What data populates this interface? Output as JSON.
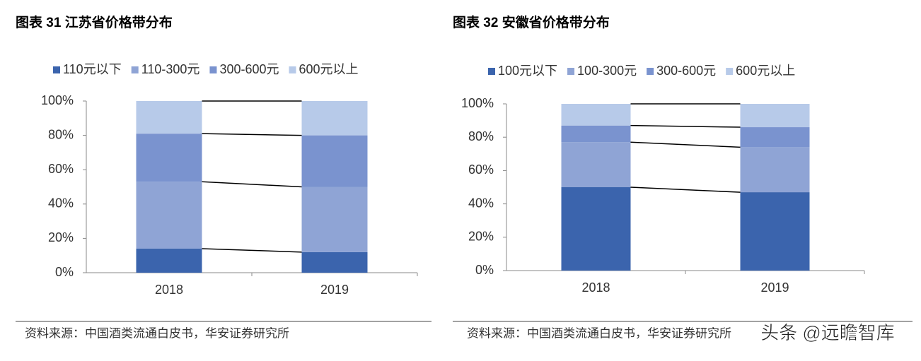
{
  "chart_data": [
    {
      "type": "stacked_bar",
      "title": "图表 31  江苏省价格带分布",
      "categories": [
        "2018",
        "2019"
      ],
      "series": [
        {
          "name": "110元以下",
          "color": "#3b64ad",
          "values": [
            14,
            12
          ]
        },
        {
          "name": "110-300元",
          "color": "#8fa4d5",
          "values": [
            39,
            38
          ]
        },
        {
          "name": "300-600元",
          "color": "#7a93cf",
          "values": [
            28,
            30
          ]
        },
        {
          "name": "600元以上",
          "color": "#b7cae9",
          "values": [
            19,
            20
          ]
        }
      ],
      "ylim": [
        0,
        100
      ],
      "yticks": [
        {
          "value": 0,
          "label": "0%"
        },
        {
          "value": 20,
          "label": "20%"
        },
        {
          "value": 40,
          "label": "40%"
        },
        {
          "value": 60,
          "label": "60%"
        },
        {
          "value": 80,
          "label": "80%"
        },
        {
          "value": 100,
          "label": "100%"
        }
      ],
      "source": "资料来源：中国酒类流通白皮书，华安证券研究所"
    },
    {
      "type": "stacked_bar",
      "title": "图表 32  安徽省价格带分布",
      "categories": [
        "2018",
        "2019"
      ],
      "series": [
        {
          "name": "100元以下",
          "color": "#3b64ad",
          "values": [
            50,
            47
          ]
        },
        {
          "name": "100-300元",
          "color": "#8fa4d5",
          "values": [
            27,
            27
          ]
        },
        {
          "name": "300-600元",
          "color": "#7a93cf",
          "values": [
            10,
            12
          ]
        },
        {
          "name": "600元以上",
          "color": "#b7cae9",
          "values": [
            13,
            14
          ]
        }
      ],
      "ylim": [
        0,
        100
      ],
      "yticks": [
        {
          "value": 0,
          "label": "0%"
        },
        {
          "value": 20,
          "label": "20%"
        },
        {
          "value": 40,
          "label": "40%"
        },
        {
          "value": 60,
          "label": "60%"
        },
        {
          "value": 80,
          "label": "80%"
        },
        {
          "value": 100,
          "label": "100%"
        }
      ],
      "source": "资料来源：中国酒类流通白皮书，华安证券研究所"
    }
  ],
  "watermark": "头条 @远瞻智库"
}
